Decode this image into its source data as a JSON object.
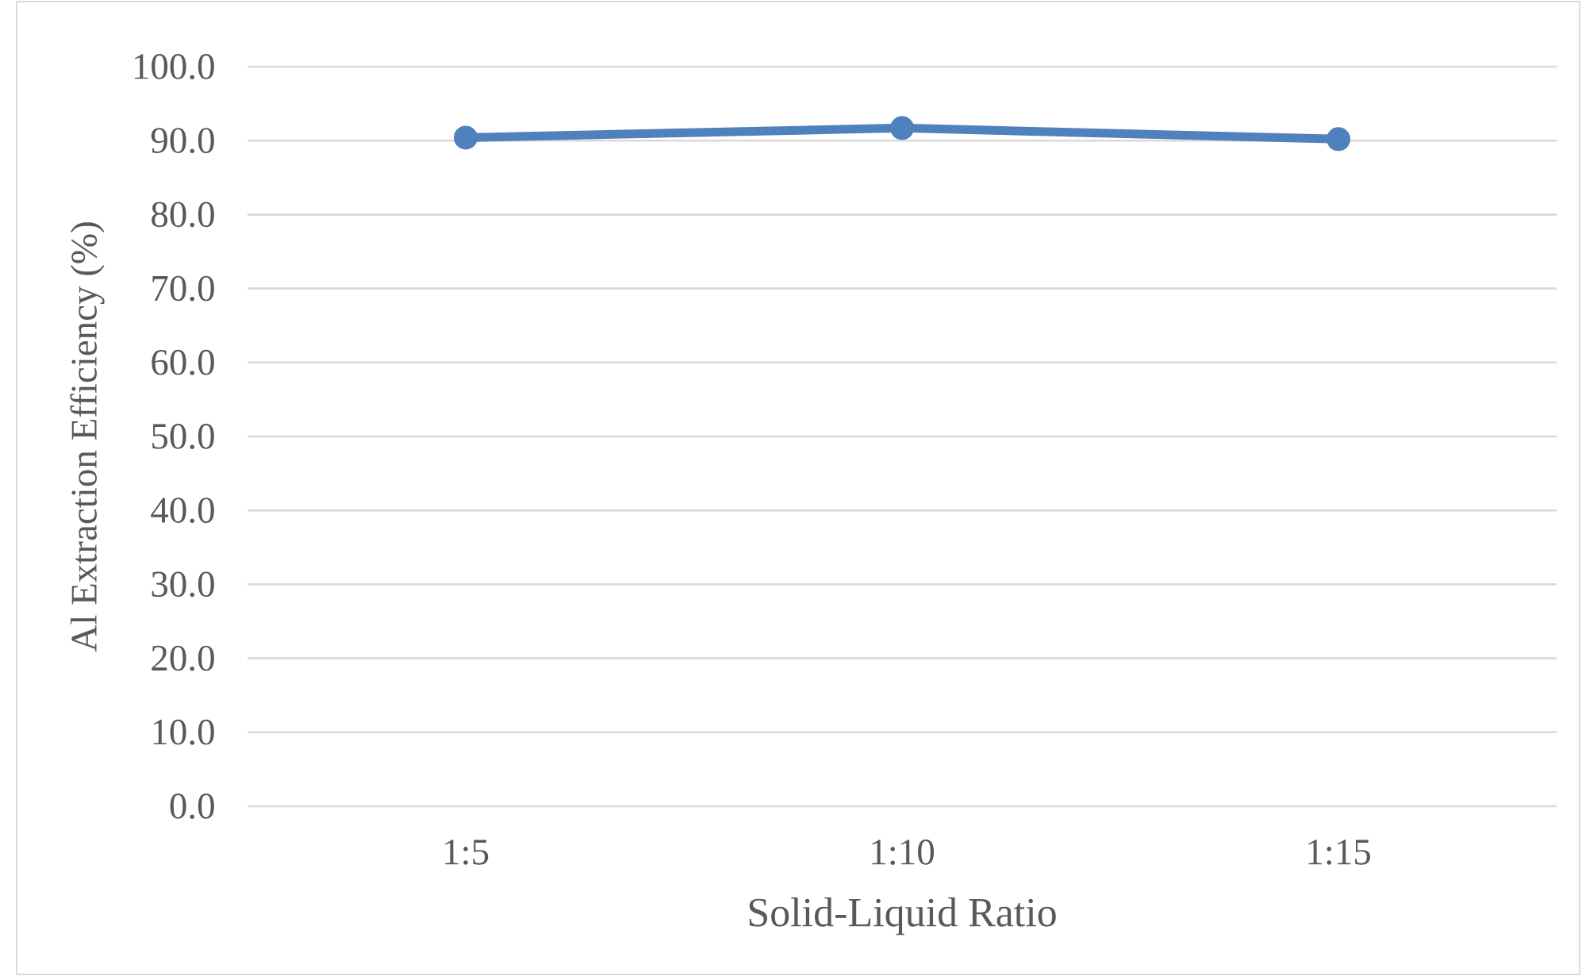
{
  "chart_data": {
    "type": "line",
    "xlabel": "Solid-Liquid Ratio",
    "ylabel": "Al Extraction Efficiency (%)",
    "categories": [
      "1:5",
      "1:10",
      "1:15"
    ],
    "values": [
      90.4,
      91.7,
      90.2
    ],
    "color": "#4f81bd",
    "ylim": [
      0,
      100
    ],
    "yticks": [
      {
        "value": 0,
        "label": "0.0"
      },
      {
        "value": 10,
        "label": "10.0"
      },
      {
        "value": 20,
        "label": "20.0"
      },
      {
        "value": 30,
        "label": "30.0"
      },
      {
        "value": 40,
        "label": "40.0"
      },
      {
        "value": 50,
        "label": "50.0"
      },
      {
        "value": 60,
        "label": "60.0"
      },
      {
        "value": 70,
        "label": "70.0"
      },
      {
        "value": 80,
        "label": "80.0"
      },
      {
        "value": 90,
        "label": "90.0"
      },
      {
        "value": 100,
        "label": "100.0"
      }
    ],
    "grid": "y",
    "marker": "circle",
    "line_style": "solid"
  }
}
